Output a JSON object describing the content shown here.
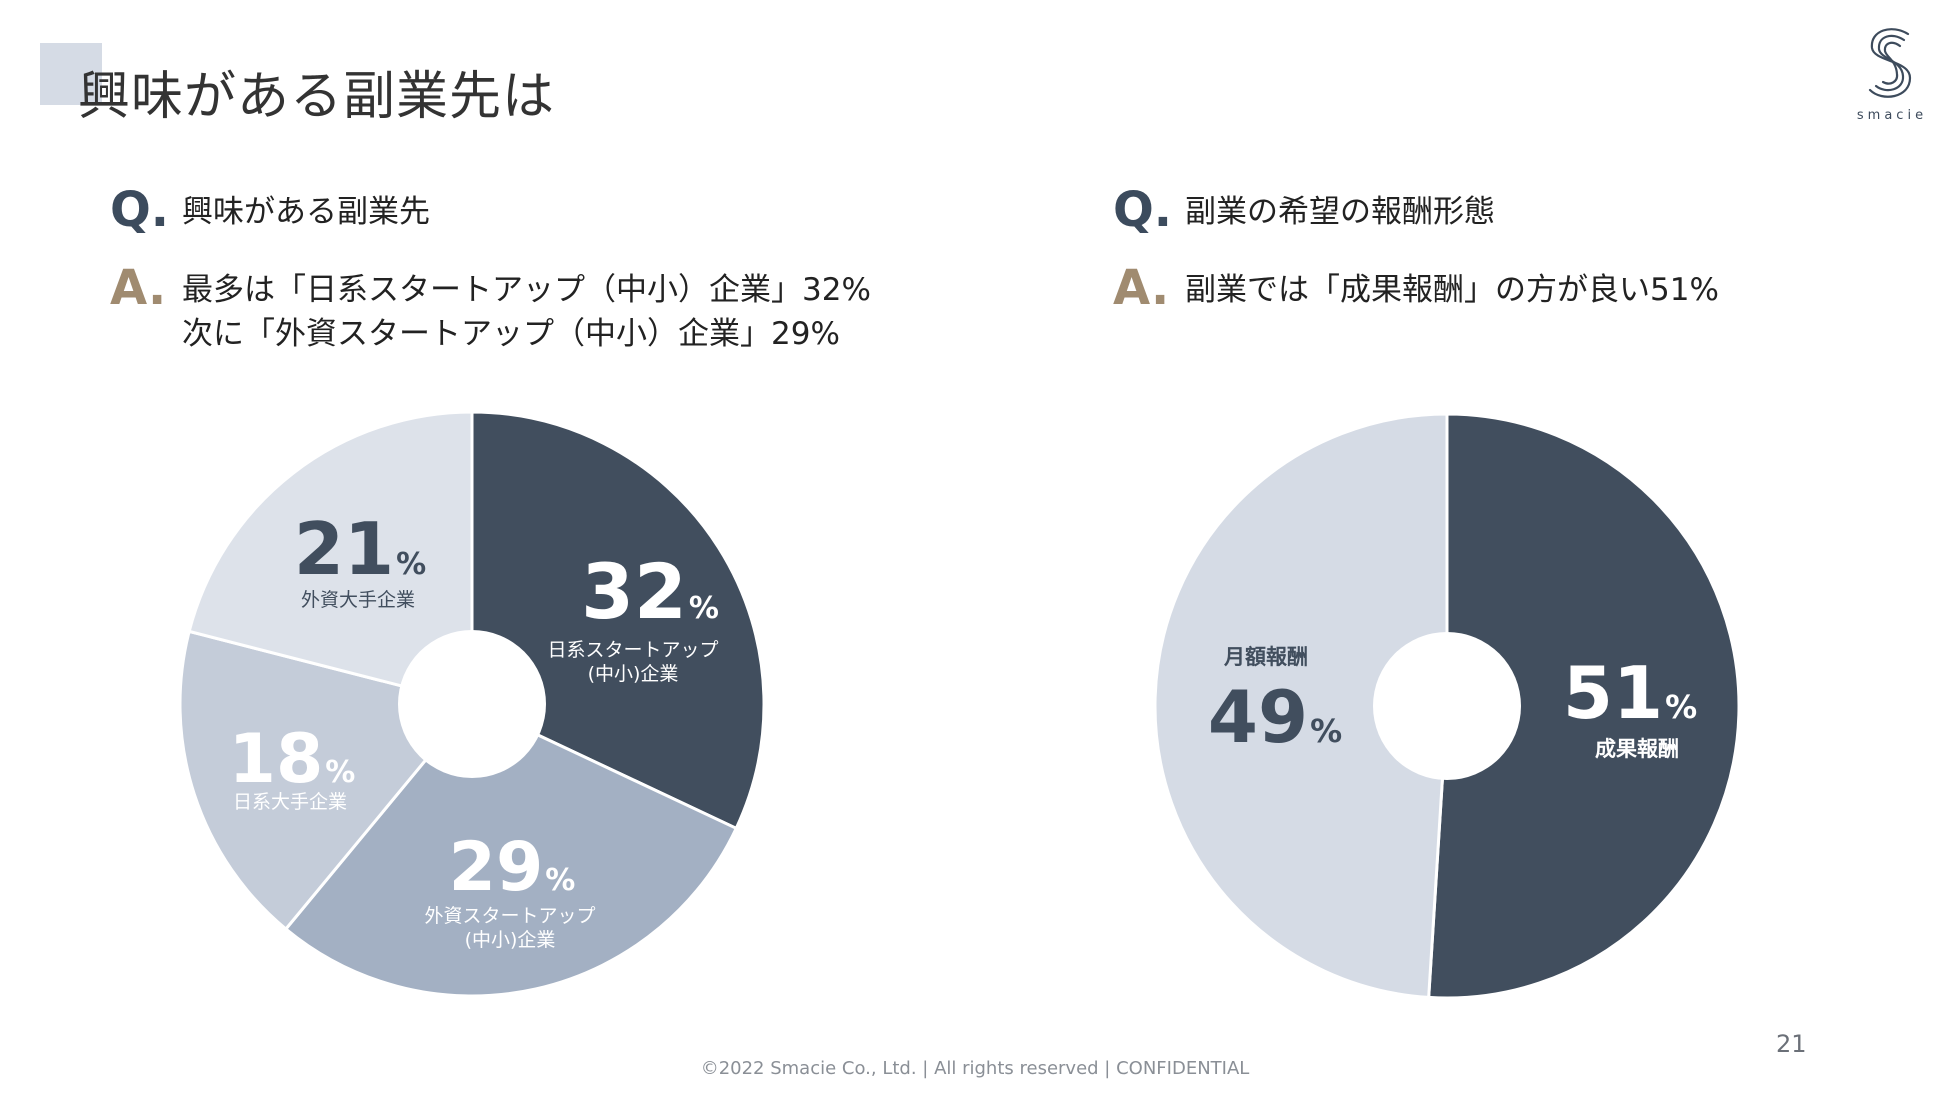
{
  "page": {
    "title": "興味がある副業先は",
    "logo_text": "smacie",
    "page_number": "21",
    "footer": "©2022 Smacie Co., Ltd. | All rights reserved | CONFIDENTIAL"
  },
  "left": {
    "q_mark": "Q.",
    "question": "興味がある副業先",
    "a_mark": "A.",
    "answer_line1": "最多は「日系スタートアップ（中小）企業」32%",
    "answer_line2": "次に「外資スタートアップ（中小）企業」29%"
  },
  "right": {
    "q_mark": "Q.",
    "question": "副業の希望の報酬形態",
    "a_mark": "A.",
    "answer_line1": "副業では「成果報酬」の方が良い51%"
  },
  "colors": {
    "dark": "#414e5e",
    "mid": "#a3b0c3",
    "light": "#c4ccd9",
    "lighter": "#dde2ea",
    "pale": "#d5dbe5",
    "brand_brown": "#a08b70",
    "brand_navy": "#3c4b5d"
  },
  "chart_data": [
    {
      "type": "pie",
      "title": "興味がある副業先",
      "unit": "%",
      "slices": [
        {
          "label": "日系スタートアップ(中小)企業",
          "label_lines": [
            "日系スタートアップ",
            "(中小)企業"
          ],
          "value": 32,
          "color": "#414e5e",
          "text_color": "#ffffff"
        },
        {
          "label": "外資スタートアップ(中小)企業",
          "label_lines": [
            "外資スタートアップ",
            "(中小)企業"
          ],
          "value": 29,
          "color": "#a3b0c3",
          "text_color": "#ffffff"
        },
        {
          "label": "日系大手企業",
          "label_lines": [
            "日系大手企業"
          ],
          "value": 18,
          "color": "#c4ccd9",
          "text_color": "#ffffff"
        },
        {
          "label": "外資大手企業",
          "label_lines": [
            "外資大手企業"
          ],
          "value": 21,
          "color": "#dde2ea",
          "text_color": "#414e5e"
        }
      ]
    },
    {
      "type": "pie",
      "title": "副業の希望の報酬形態",
      "unit": "%",
      "slices": [
        {
          "label": "成果報酬",
          "label_lines": [
            "成果報酬"
          ],
          "value": 51,
          "color": "#414e5e",
          "text_color": "#ffffff"
        },
        {
          "label": "月額報酬",
          "label_lines": [
            "月額報酬"
          ],
          "value": 49,
          "color": "#d5dbe5",
          "text_color": "#414e5e"
        }
      ]
    }
  ]
}
